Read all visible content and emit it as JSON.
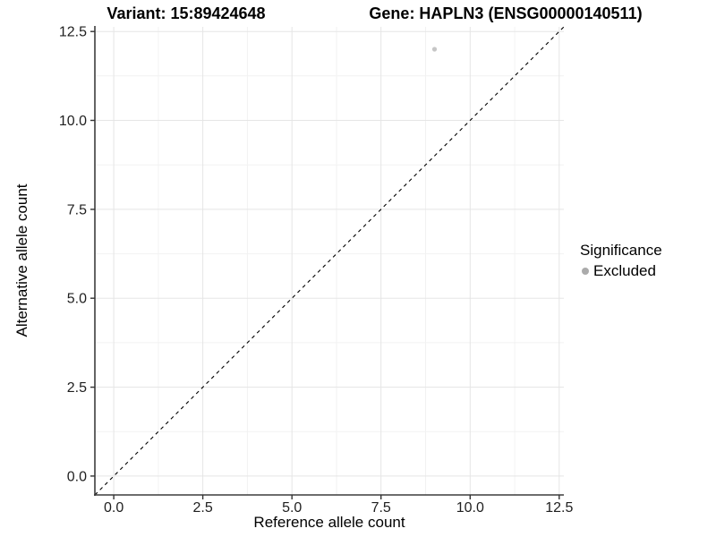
{
  "chart_data": {
    "type": "scatter",
    "titles": [
      "Variant: 15:89424648",
      "Gene: HAPLN3 (ENSG00000140511)"
    ],
    "xlabel": "Reference allele count",
    "ylabel": "Alternative allele count",
    "xlim": [
      -0.53,
      12.63
    ],
    "ylim": [
      -0.53,
      12.63
    ],
    "x_ticks": {
      "values": [
        0,
        2.5,
        5,
        7.5,
        10,
        12.5
      ],
      "labels": [
        "0.0",
        "2.5",
        "5.0",
        "7.5",
        "10.0",
        "12.5"
      ]
    },
    "y_ticks": {
      "values": [
        0,
        2.5,
        5,
        7.5,
        10,
        12.5
      ],
      "labels": [
        "0.0",
        "2.5",
        "5.0",
        "7.5",
        "10.0",
        "12.5"
      ]
    },
    "minor_ticks": [
      1.25,
      3.75,
      6.25,
      8.75,
      11.25
    ],
    "grid": "major+minor",
    "reference_line": {
      "shape": "identity-diagonal",
      "from": [
        -0.53,
        -0.53
      ],
      "to": [
        12.63,
        12.63
      ],
      "dash": "4 4",
      "color": "#000000"
    },
    "series": [
      {
        "name": "Excluded",
        "marker": "circle",
        "color": "#c6c6c6",
        "points": [
          {
            "x": 9,
            "y": 12
          }
        ]
      }
    ],
    "legend": {
      "title": "Significance",
      "position": "right",
      "items": [
        {
          "label": "Excluded",
          "color": "#ababab"
        }
      ]
    },
    "style": {
      "background": "#ffffff",
      "axis_line": "#3d3d3d",
      "tick": "#333333",
      "tick_label": "#1f1f1f",
      "grid_major": "#e5e5e5",
      "grid_minor": "#f2f2f2"
    }
  }
}
